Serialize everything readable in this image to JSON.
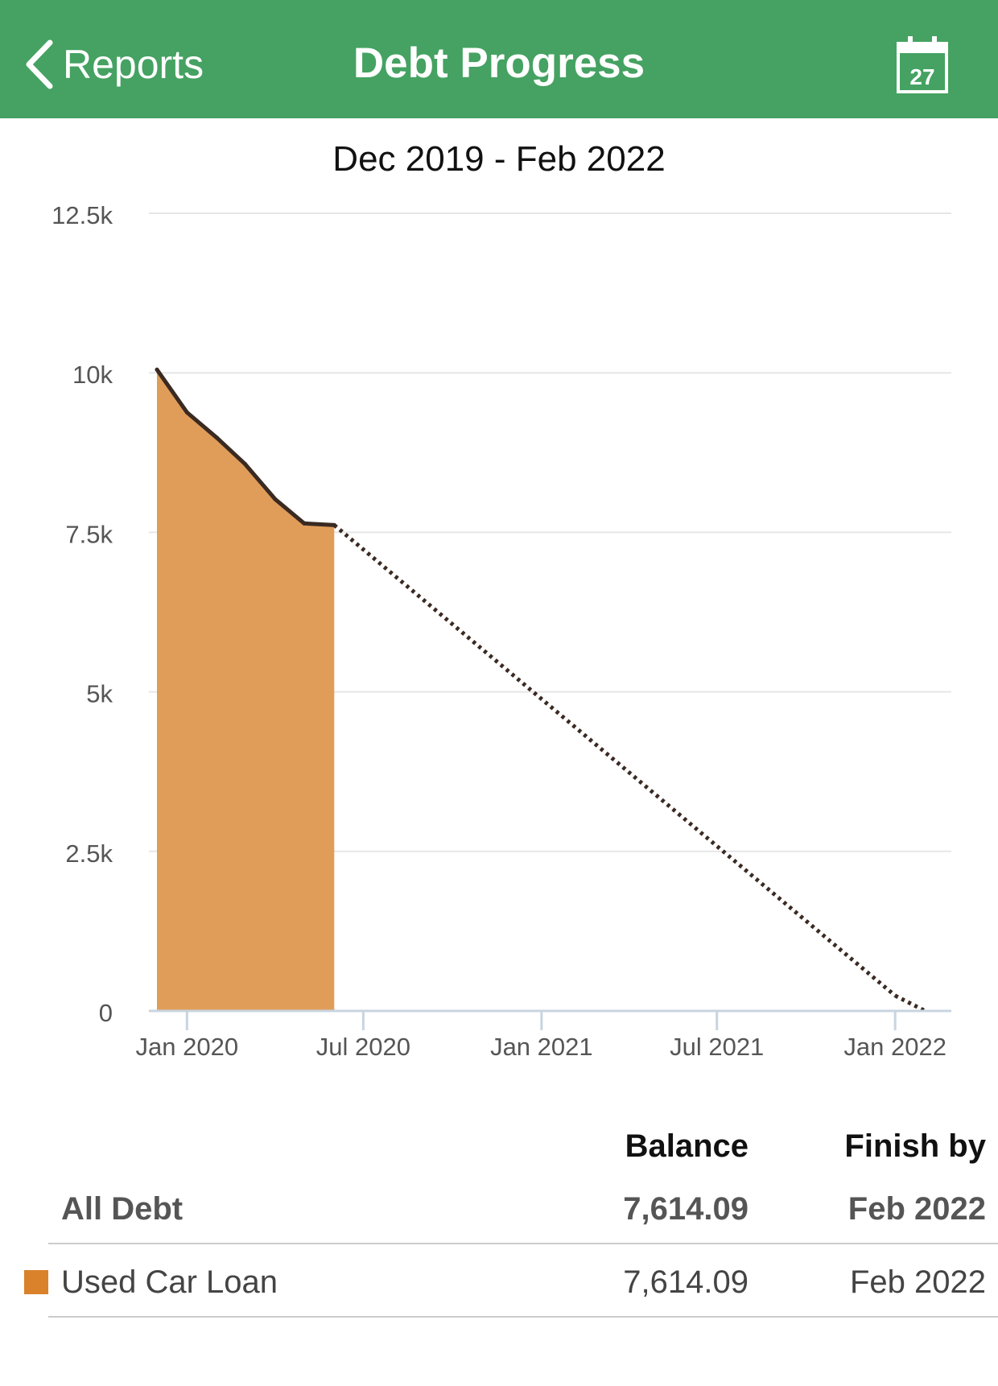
{
  "header": {
    "back_label": "Reports",
    "title": "Debt Progress",
    "calendar_day": "27",
    "background_color": "#45a262"
  },
  "chart_data": {
    "type": "area",
    "title": "Dec 2019 - Feb 2022",
    "xlabel": "",
    "ylabel": "",
    "ylim": [
      0,
      12500
    ],
    "yticks": [
      {
        "value": 0,
        "label": "0"
      },
      {
        "value": 2500,
        "label": "2.5k"
      },
      {
        "value": 5000,
        "label": "5k"
      },
      {
        "value": 7500,
        "label": "7.5k"
      },
      {
        "value": 10000,
        "label": "10k"
      },
      {
        "value": 12500,
        "label": "12.5k"
      }
    ],
    "xlim": [
      "2019-12-01",
      "2022-02-28"
    ],
    "xticks": [
      {
        "date": "2020-01-01",
        "label": "Jan 2020"
      },
      {
        "date": "2020-07-01",
        "label": "Jul 2020"
      },
      {
        "date": "2021-01-01",
        "label": "Jan 2021"
      },
      {
        "date": "2021-07-01",
        "label": "Jul 2021"
      },
      {
        "date": "2022-01-01",
        "label": "Jan 2022"
      }
    ],
    "grid": true,
    "series": [
      {
        "name": "Used Car Loan",
        "style": "filled-area",
        "fill_color": "#e09d59",
        "line_color": "#3a2a22",
        "points": [
          {
            "x": "2019-12-01",
            "y": 10050
          },
          {
            "x": "2020-01-01",
            "y": 9380
          },
          {
            "x": "2020-02-01",
            "y": 8980
          },
          {
            "x": "2020-03-01",
            "y": 8570
          },
          {
            "x": "2020-04-01",
            "y": 8020
          },
          {
            "x": "2020-05-01",
            "y": 7640
          },
          {
            "x": "2020-06-01",
            "y": 7614.09
          }
        ]
      },
      {
        "style": "dotted-projection",
        "line_color": "#3a2a22",
        "points": [
          {
            "x": "2020-06-01",
            "y": 7614.09
          },
          {
            "x": "2022-01-01",
            "y": 240
          },
          {
            "x": "2022-02-01",
            "y": 0
          }
        ]
      }
    ]
  },
  "summary": {
    "headers": {
      "balance": "Balance",
      "finish_by": "Finish by"
    },
    "total_row": {
      "name": "All Debt",
      "balance": "7,614.09",
      "finish_by": "Feb 2022"
    },
    "rows": [
      {
        "name": "Used Car Loan",
        "balance": "7,614.09",
        "finish_by": "Feb 2022",
        "color": "#d9822b"
      }
    ]
  }
}
